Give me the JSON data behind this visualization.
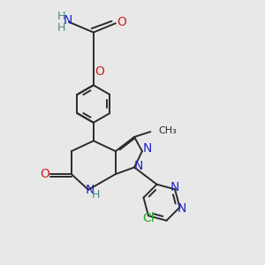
{
  "background_color": "#e8e8e8",
  "bond_color": "#2b2b2b",
  "bond_lw": 1.4,
  "figsize": [
    3.0,
    3.0
  ],
  "dpi": 100,
  "xlim": [
    0.0,
    10.0
  ],
  "ylim": [
    0.0,
    10.0
  ],
  "colors": {
    "N": "#2222cc",
    "O": "#cc2222",
    "Cl": "#22aa22",
    "NH2_H": "#4a8888",
    "NH2_N": "#2222cc",
    "C": "#2b2b2b"
  }
}
